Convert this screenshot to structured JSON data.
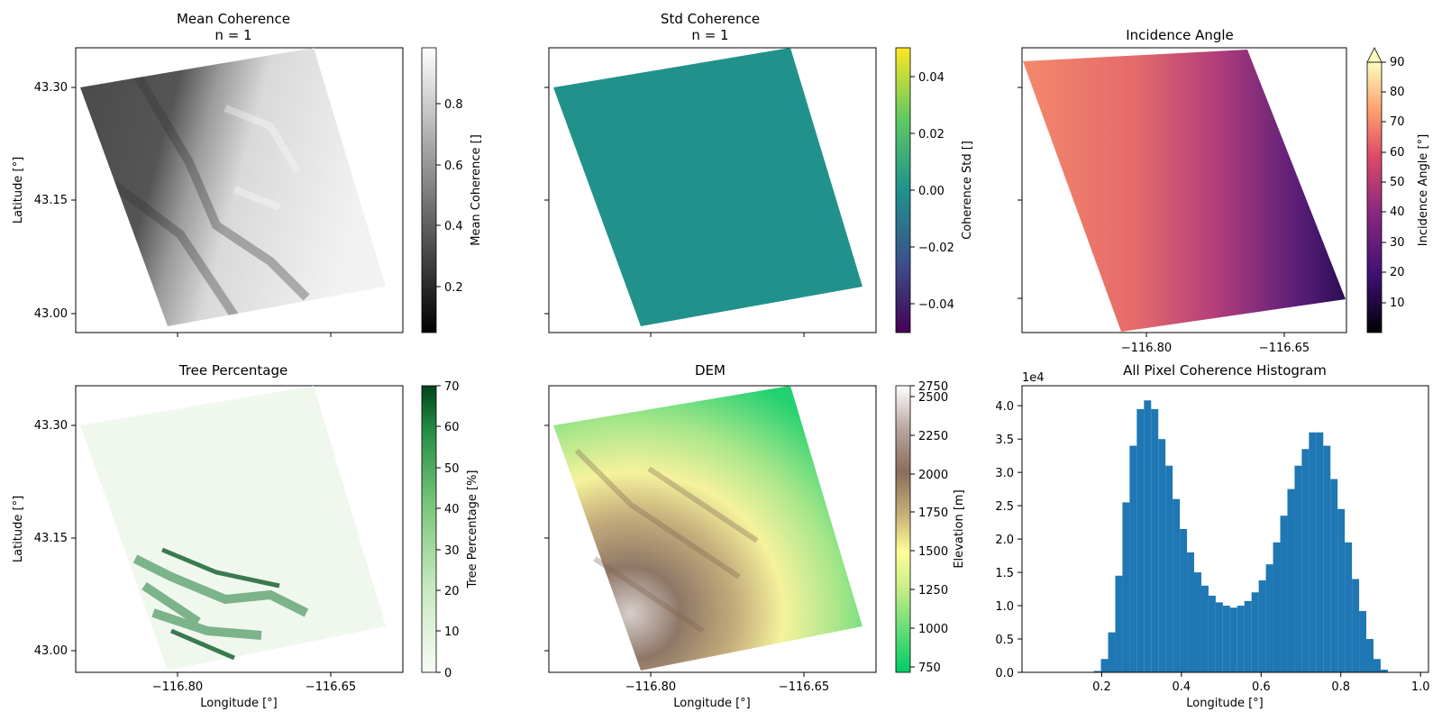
{
  "panels": {
    "mean_coh": {
      "title1": "Mean Coherence",
      "title2": "n = 1",
      "ylabel": "Latitude [°]",
      "cbar_label": "Mean Coherence []",
      "cbar_ticks": [
        "0.2",
        "0.4",
        "0.6",
        "0.8"
      ]
    },
    "std_coh": {
      "title1": "Std Coherence",
      "title2": "n = 1",
      "cbar_label": "Coherence Std []",
      "cbar_ticks": [
        "0.04",
        "0.02",
        "0.00",
        "−0.02",
        "−0.04"
      ]
    },
    "inc": {
      "title": "Incidence Angle",
      "cbar_label": "Incidence Angle [°]",
      "cbar_ticks": [
        "90",
        "80",
        "70",
        "60",
        "50",
        "40",
        "30",
        "20",
        "10"
      ]
    },
    "tree": {
      "title": "Tree Percentage",
      "ylabel": "Latitude [°]",
      "xlabel": "Longitude [°]",
      "cbar_label": "Tree Percentage [%]",
      "cbar_ticks": [
        "70",
        "60",
        "50",
        "40",
        "30",
        "20",
        "10",
        "0"
      ]
    },
    "dem": {
      "title": "DEM",
      "xlabel": "Longitude [°]",
      "cbar_label": "Elevation [m]",
      "cbar_ticks": [
        "2750",
        "2500",
        "2250",
        "2000",
        "1750",
        "1500",
        "1250",
        "1000",
        "750"
      ]
    },
    "hist": {
      "title": "All Pixel Coherence Histogram",
      "xlabel": "Longitude [°]",
      "exponent": "1e4"
    }
  },
  "map_axes": {
    "lat_ticks": [
      "43.30",
      "43.15",
      "43.00"
    ],
    "lon_ticks": [
      "−116.80",
      "−116.65"
    ]
  },
  "chart_data": [
    {
      "type": "bar",
      "title": "All Pixel Coherence Histogram",
      "xlabel": "Longitude [°]",
      "ylabel": "",
      "xlim": [
        0.0,
        1.02
      ],
      "ylim": [
        0,
        4.3
      ],
      "y_multiplier": "1e4",
      "x_ticks": [
        "0.2",
        "0.4",
        "0.6",
        "0.8",
        "1.0"
      ],
      "y_ticks": [
        "0.0",
        "0.5",
        "1.0",
        "1.5",
        "2.0",
        "2.5",
        "3.0",
        "3.5",
        "4.0"
      ],
      "bin_width": 0.018,
      "bin_start": 0.18,
      "values": [
        0.02,
        0.2,
        0.6,
        1.45,
        2.55,
        3.4,
        3.95,
        4.08,
        3.95,
        3.5,
        3.1,
        2.6,
        2.15,
        1.8,
        1.5,
        1.3,
        1.15,
        1.05,
        1.0,
        0.97,
        1.0,
        1.07,
        1.2,
        1.38,
        1.62,
        1.95,
        2.35,
        2.75,
        3.1,
        3.35,
        3.6,
        3.6,
        3.4,
        2.9,
        2.45,
        1.95,
        1.4,
        0.92,
        0.5,
        0.2,
        0.04
      ]
    }
  ],
  "colors": {
    "bar": "#1f77b4",
    "std_fill": "#21918c",
    "tree_bg": "#f0f8ee"
  }
}
